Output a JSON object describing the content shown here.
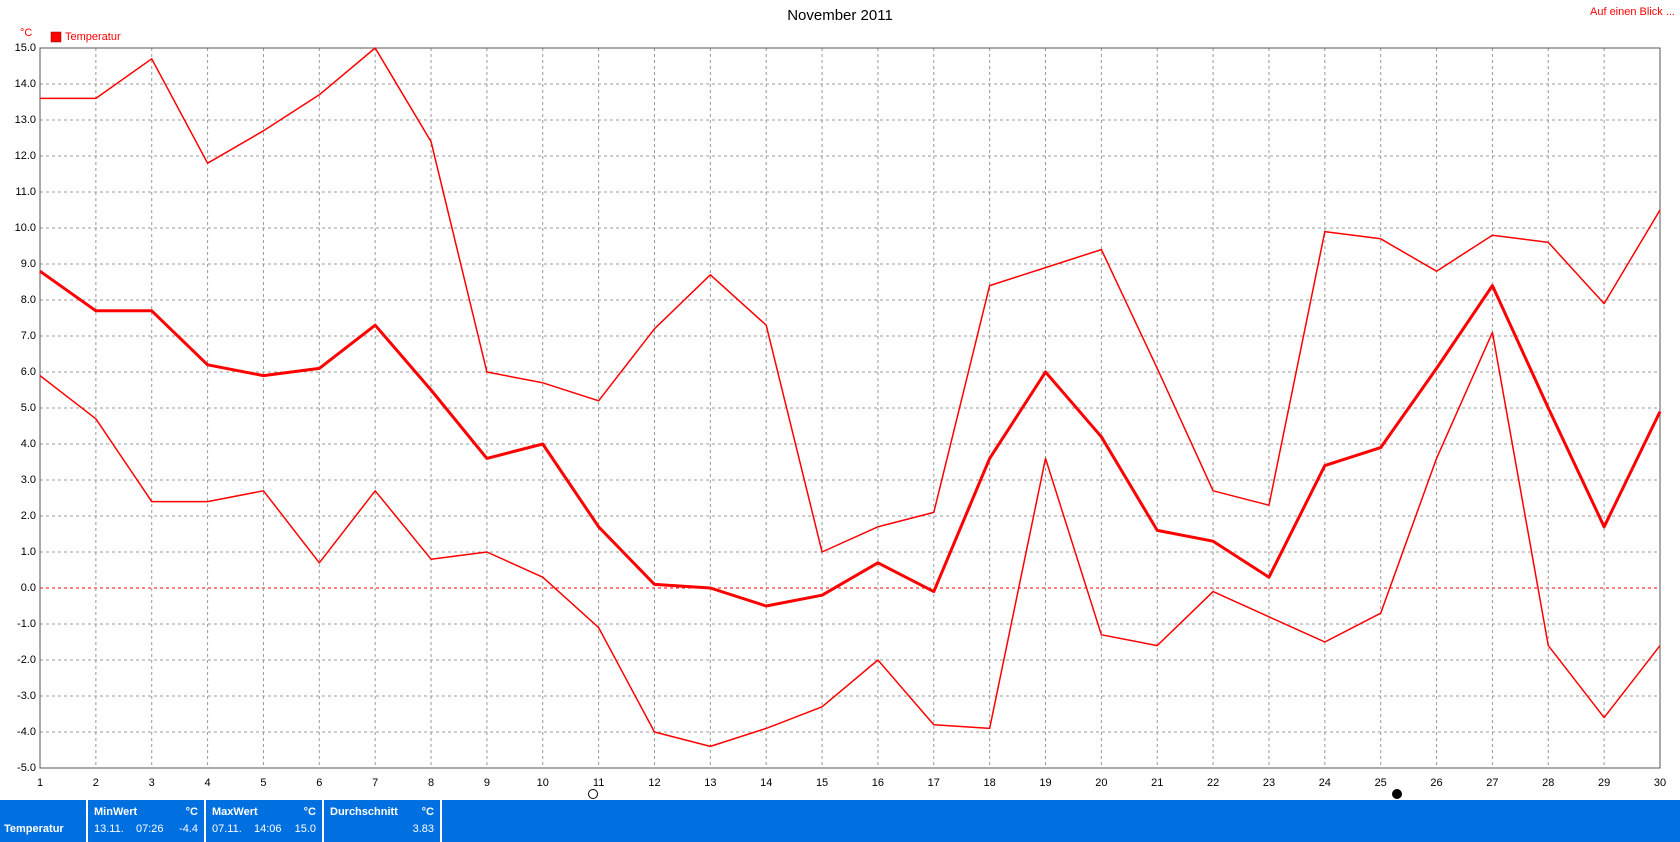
{
  "chart_data": {
    "type": "line",
    "title": "November 2011",
    "y_unit": "°C",
    "link": "Auf einen Blick ...",
    "x": [
      1,
      2,
      3,
      4,
      5,
      6,
      7,
      8,
      9,
      10,
      11,
      12,
      13,
      14,
      15,
      16,
      17,
      18,
      19,
      20,
      21,
      22,
      23,
      24,
      25,
      26,
      27,
      28,
      29,
      30
    ],
    "xlim": [
      1,
      30
    ],
    "xticks": [
      1,
      2,
      3,
      4,
      5,
      6,
      7,
      8,
      9,
      10,
      11,
      12,
      13,
      14,
      15,
      16,
      17,
      18,
      19,
      20,
      21,
      22,
      23,
      24,
      25,
      26,
      27,
      28,
      29,
      30
    ],
    "ylim": [
      -5,
      15
    ],
    "yticks": [
      {
        "value": -5,
        "label": "-5.0"
      },
      {
        "value": -4,
        "label": "-4.0"
      },
      {
        "value": -3,
        "label": "-3.0"
      },
      {
        "value": -2,
        "label": "-2.0"
      },
      {
        "value": -1,
        "label": "-1.0"
      },
      {
        "value": 0,
        "label": "0.0"
      },
      {
        "value": 1,
        "label": "1.0"
      },
      {
        "value": 2,
        "label": "2.0"
      },
      {
        "value": 3,
        "label": "3.0"
      },
      {
        "value": 4,
        "label": "4.0"
      },
      {
        "value": 5,
        "label": "5.0"
      },
      {
        "value": 6,
        "label": "6.0"
      },
      {
        "value": 7,
        "label": "7.0"
      },
      {
        "value": 8,
        "label": "8.0"
      },
      {
        "value": 9,
        "label": "9.0"
      },
      {
        "value": 10,
        "label": "10.0"
      },
      {
        "value": 11,
        "label": "11.0"
      },
      {
        "value": 12,
        "label": "12.0"
      },
      {
        "value": 13,
        "label": "13.0"
      },
      {
        "value": 14,
        "label": "14.0"
      },
      {
        "value": 15,
        "label": "15.0"
      }
    ],
    "grid": true,
    "legend": "upper left",
    "series": [
      {
        "color": "#ff0000",
        "line_width": 1.5,
        "values": [
          13.6,
          13.6,
          14.7,
          11.8,
          12.7,
          13.7,
          15.0,
          12.4,
          6.0,
          5.7,
          5.2,
          7.2,
          8.7,
          7.3,
          1.0,
          1.7,
          2.1,
          8.4,
          8.9,
          9.4,
          6.1,
          2.7,
          2.3,
          9.9,
          9.7,
          8.8,
          9.8,
          9.6,
          7.9,
          10.5
        ]
      },
      {
        "name": "Temperatur",
        "color": "#ff0000",
        "line_width": 3,
        "values": [
          8.8,
          7.7,
          7.7,
          6.2,
          5.9,
          6.1,
          7.3,
          5.5,
          3.6,
          4.0,
          1.7,
          0.1,
          0.0,
          -0.5,
          -0.2,
          0.7,
          -0.1,
          3.6,
          6.0,
          4.2,
          1.6,
          1.3,
          0.3,
          3.4,
          3.9,
          6.1,
          8.4,
          5.0,
          1.7,
          4.9
        ]
      },
      {
        "color": "#ff0000",
        "line_width": 1.5,
        "values": [
          5.9,
          4.7,
          2.4,
          2.4,
          2.7,
          0.7,
          2.7,
          0.8,
          1.0,
          0.3,
          -1.1,
          -4.0,
          -4.4,
          -3.9,
          -3.3,
          -2.0,
          -3.8,
          -3.9,
          3.6,
          -1.3,
          -1.6,
          -0.1,
          -0.8,
          -1.5,
          -0.7,
          3.6,
          7.1,
          -1.6,
          -3.6,
          -1.6
        ]
      }
    ]
  },
  "summary": {
    "label": "Temperatur",
    "columns": [
      {
        "header": "MinWert",
        "unit": "°C",
        "date": "13.11.",
        "time": "07:26",
        "value": "-4.4"
      },
      {
        "header": "MaxWert",
        "unit": "°C",
        "date": "07.11.",
        "time": "14:06",
        "value": "15.0"
      },
      {
        "header": "Durchschnitt",
        "unit": "°C",
        "value": "3.83"
      }
    ]
  }
}
